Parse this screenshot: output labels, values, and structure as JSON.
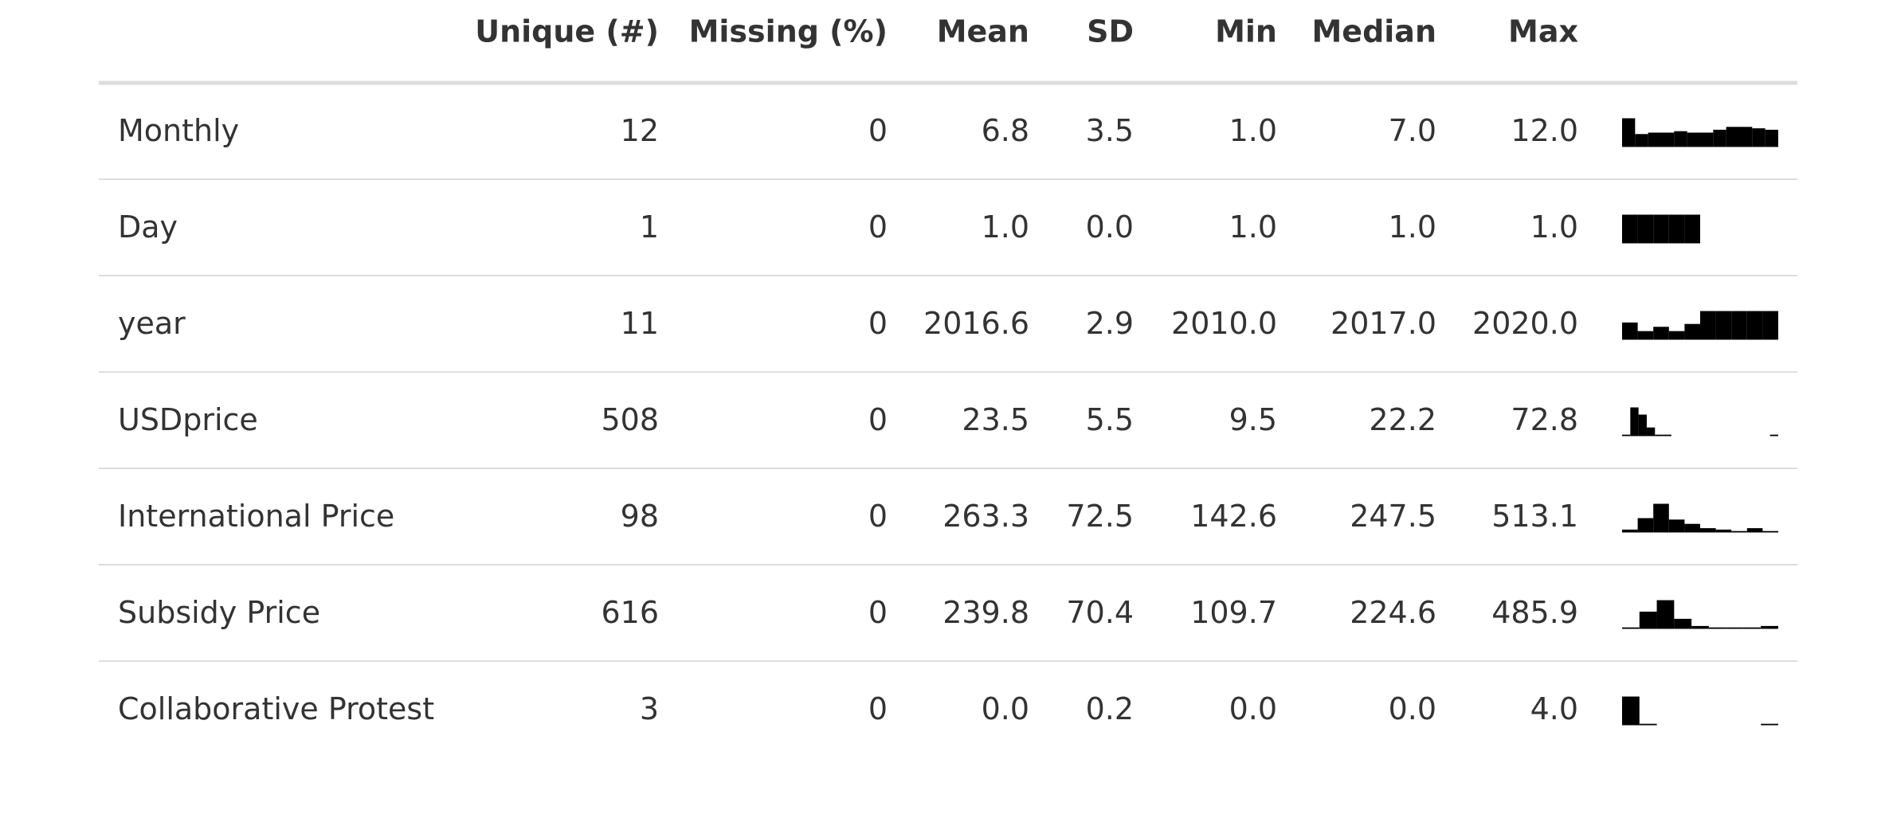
{
  "table": {
    "columns": [
      "Unique (#)",
      "Missing (%)",
      "Mean",
      "SD",
      "Min",
      "Median",
      "Max"
    ],
    "rows": [
      {
        "label": "Monthly",
        "cells": [
          "12",
          "0",
          "6.8",
          "3.5",
          "1.0",
          "7.0",
          "12.0"
        ],
        "histogram": [
          1,
          0.45,
          0.5,
          0.5,
          0.55,
          0.5,
          0.5,
          0.6,
          0.7,
          0.7,
          0.65,
          0.6
        ]
      },
      {
        "label": "Day",
        "cells": [
          "1",
          "0",
          "1.0",
          "0.0",
          "1.0",
          "1.0",
          "1.0"
        ],
        "histogram": [
          1,
          1,
          1,
          1,
          1,
          0,
          0,
          0,
          0,
          0
        ]
      },
      {
        "label": "year",
        "cells": [
          "11",
          "0",
          "2016.6",
          "2.9",
          "2010.0",
          "2017.0",
          "2020.0"
        ],
        "histogram": [
          0.6,
          0.3,
          0.45,
          0.3,
          0.55,
          1,
          1,
          1,
          1,
          1
        ]
      },
      {
        "label": "USDprice",
        "cells": [
          "508",
          "0",
          "23.5",
          "5.5",
          "9.5",
          "22.2",
          "72.8"
        ],
        "histogram": [
          0.05,
          1,
          0.75,
          0.3,
          0.05,
          0.05,
          0,
          0,
          0,
          0,
          0,
          0,
          0,
          0,
          0,
          0,
          0,
          0,
          0.05
        ]
      },
      {
        "label": "International Price",
        "cells": [
          "98",
          "0",
          "263.3",
          "72.5",
          "142.6",
          "247.5",
          "513.1"
        ],
        "histogram": [
          0.1,
          0.5,
          1,
          0.45,
          0.3,
          0.15,
          0.1,
          0.05,
          0.15,
          0.05
        ]
      },
      {
        "label": "Subsidy Price",
        "cells": [
          "616",
          "0",
          "239.8",
          "70.4",
          "109.7",
          "224.6",
          "485.9"
        ],
        "histogram": [
          0.05,
          0.6,
          1,
          0.35,
          0.1,
          0.05,
          0.05,
          0.05,
          0.1
        ]
      },
      {
        "label": "Collaborative Protest",
        "cells": [
          "3",
          "0",
          "0.0",
          "0.2",
          "0.0",
          "0.0",
          "4.0"
        ],
        "histogram": [
          1,
          0.05,
          0,
          0,
          0,
          0,
          0,
          0,
          0.05
        ]
      }
    ]
  }
}
